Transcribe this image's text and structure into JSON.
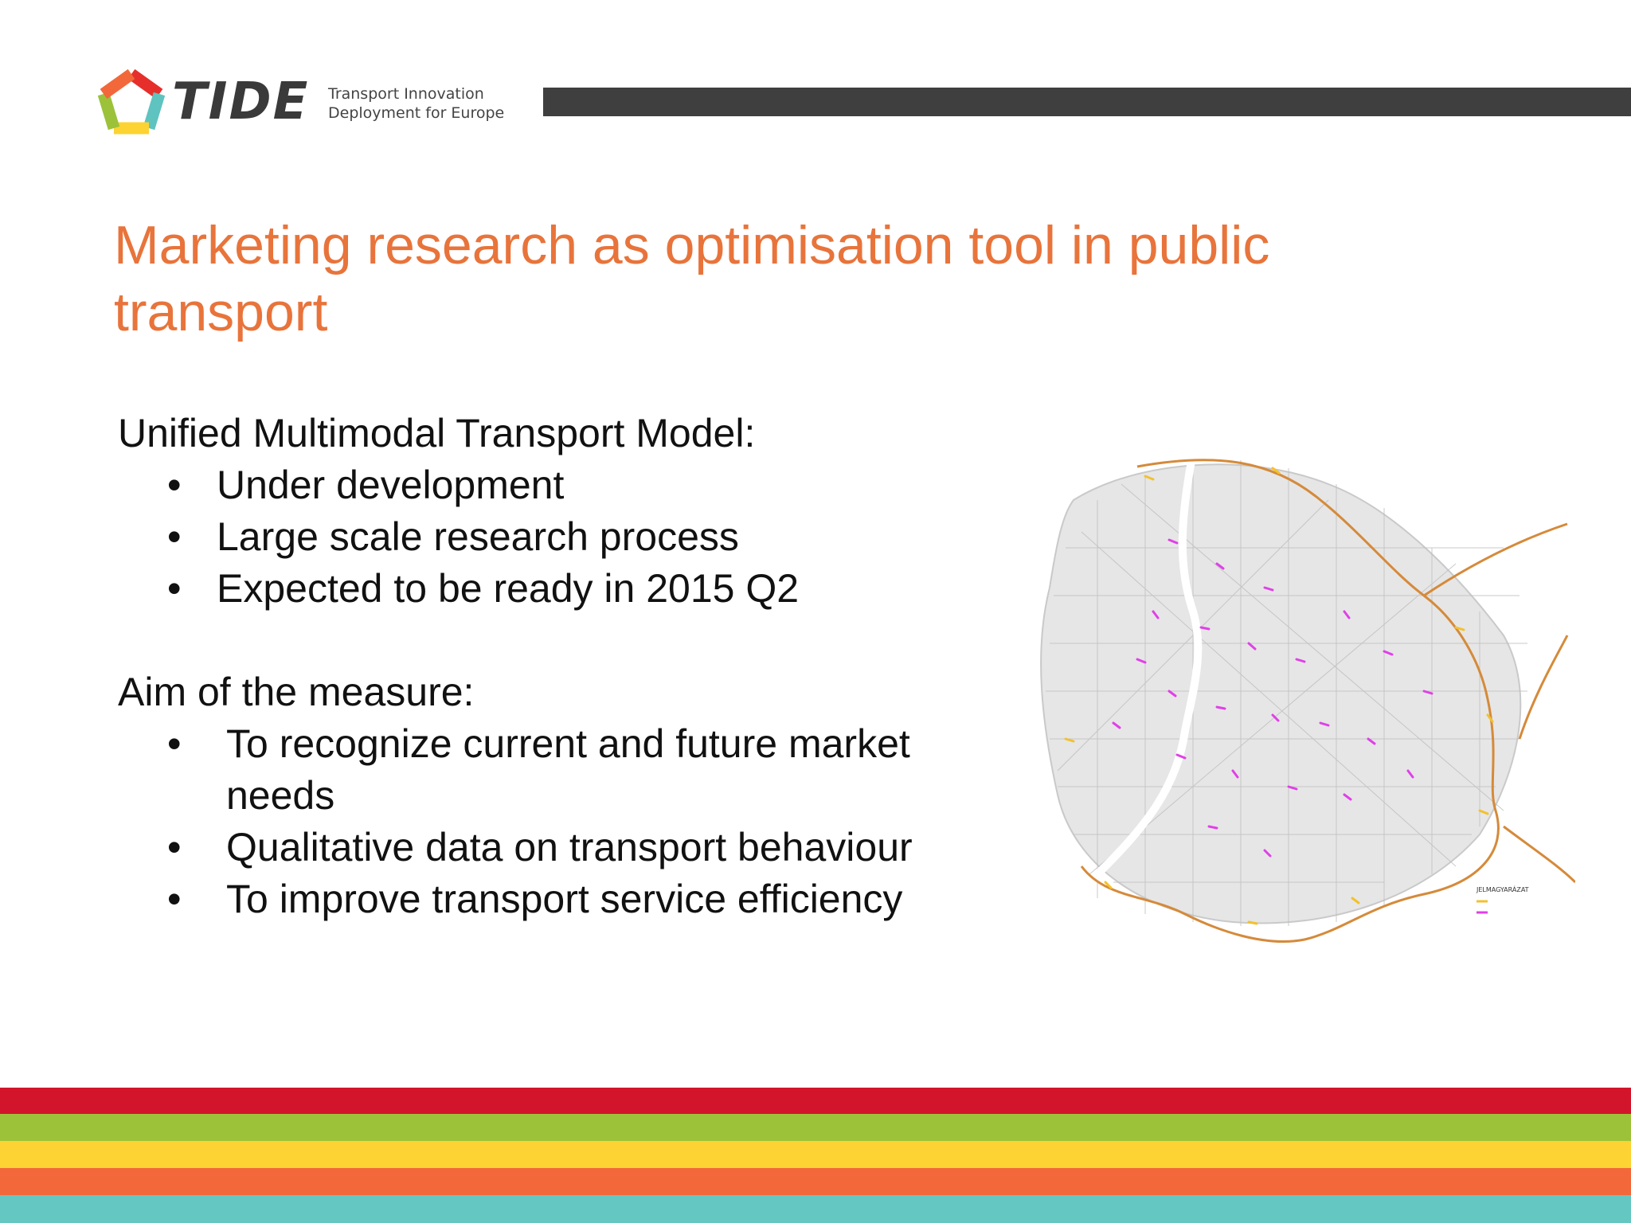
{
  "logo": {
    "name": "TIDE",
    "tagline_line1": "Transport Innovation",
    "tagline_line2": "Deployment for Europe",
    "icon": "tide-pentagon-logo"
  },
  "slide": {
    "title": "Marketing research as optimisation tool in public transport",
    "section1": {
      "heading": "Unified Multimodal Transport Model:",
      "bullets": [
        "Under development",
        "Large scale research process",
        "Expected to be ready in 2015 Q2"
      ]
    },
    "section2": {
      "heading": "Aim of the measure:",
      "bullets": [
        "To recognize current and future market needs",
        "Qualitative data on transport behaviour",
        "To improve transport service efficiency"
      ]
    },
    "bullet_symbol": "•"
  },
  "map": {
    "icon": "city-transport-network-map",
    "legend_title": "JELMAGYARÁZAT"
  },
  "colors": {
    "title": "#e8743b",
    "header_bar": "#3f3f3f",
    "stripes": [
      "#d2152b",
      "#9cc23a",
      "#fcd332",
      "#f2683a",
      "#65c7c2"
    ]
  }
}
